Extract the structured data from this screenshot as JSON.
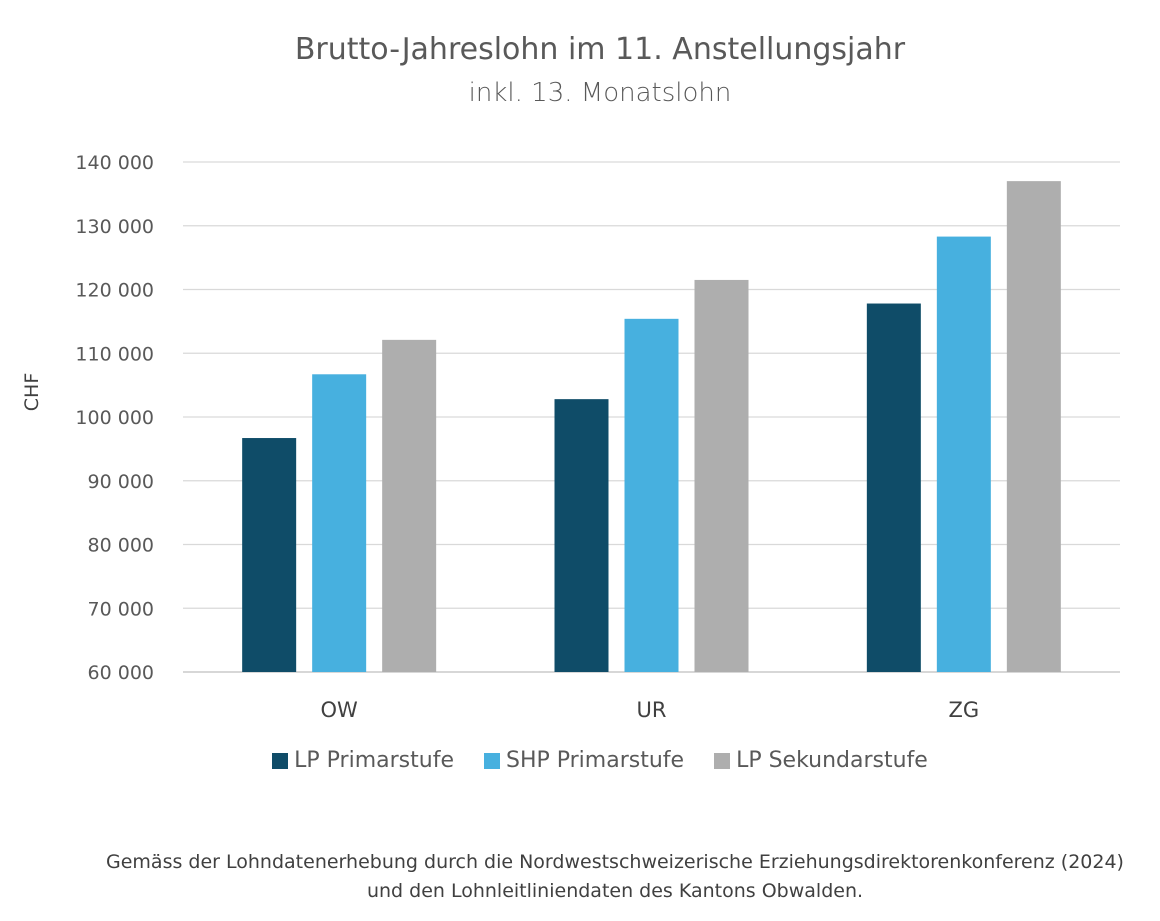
{
  "chart_data": {
    "type": "bar",
    "title": "Brutto-Jahreslohn im 11. Anstellungsjahr",
    "subtitle": "inkl. 13. Monatslohn",
    "ylabel": "CHF",
    "xlabel": "",
    "ylim": [
      60000,
      140000
    ],
    "yticks": [
      60000,
      70000,
      80000,
      90000,
      100000,
      110000,
      120000,
      130000,
      140000
    ],
    "ytick_labels": [
      "60 000",
      "70 000",
      "80 000",
      "90 000",
      "100 000",
      "110 000",
      "120 000",
      "130 000",
      "140 000"
    ],
    "grid": true,
    "categories": [
      "OW",
      "UR",
      "ZG"
    ],
    "series": [
      {
        "name": "LP Primarstufe",
        "color": "#0f4c68",
        "values": [
          96700,
          102800,
          117800
        ]
      },
      {
        "name": "SHP Primarstufe",
        "color": "#47b0df",
        "values": [
          106700,
          115400,
          128300
        ]
      },
      {
        "name": "LP Sekundarstufe",
        "color": "#aeaeae",
        "values": [
          112100,
          121500,
          137000
        ]
      }
    ],
    "legend_position": "bottom"
  },
  "footnote": {
    "line1": "Gemäss der Lohndatenerhebung durch die Nordwestschweizerische Erziehungsdirektorenkonferenz (2024)",
    "line2": "und den Lohnleitliniendaten des Kantons Obwalden."
  }
}
